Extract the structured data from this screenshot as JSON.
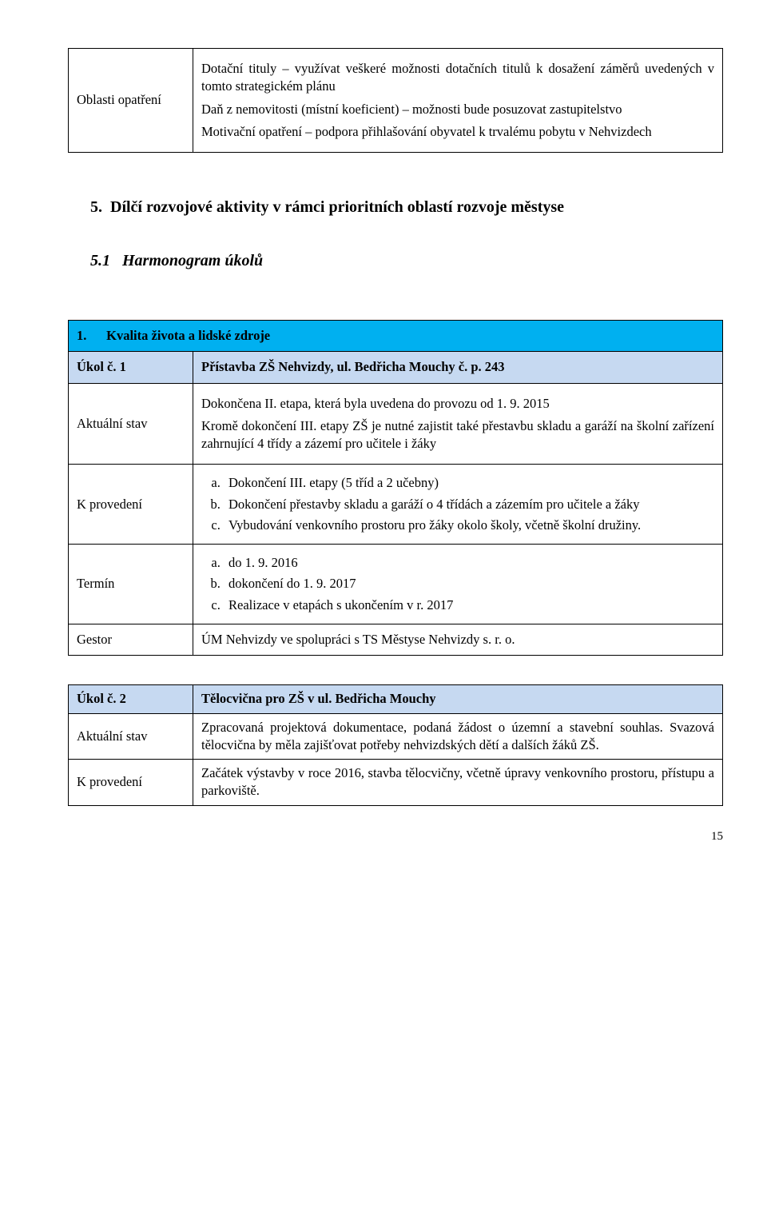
{
  "table1": {
    "left": "Oblasti opatření",
    "p1": "Dotační tituly – využívat veškeré možnosti dotačních titulů k dosažení záměrů uvedených v tomto strategickém plánu",
    "p2": "Daň z nemovitosti (místní koeficient) – možnosti bude posuzovat zastupitelstvo",
    "p3": "Motivační opatření – podpora přihlašování obyvatel k trvalému pobytu v Nehvizdech"
  },
  "h5_num": "5.",
  "h5_text": "Dílčí rozvojové aktivity v rámci prioritních oblastí rozvoje městyse",
  "h51_num": "5.1",
  "h51_text": "Harmonogram úkolů",
  "task1": {
    "header_num": "1.",
    "header_text": "Kvalita života a lidské zdroje",
    "id_label": "Úkol č. 1",
    "title": "Přístavba ZŠ Nehvizdy, ul. Bedřicha Mouchy č. p. 243",
    "aktualni_label": "Aktuální stav",
    "aktualni_p1": "Dokončena II. etapa, která byla uvedena do provozu od 1. 9. 2015",
    "aktualni_p2": "Kromě dokončení III. etapy ZŠ je nutné zajistit také přestavbu skladu a garáží na školní zařízení zahrnující 4 třídy a zázemí pro učitele i žáky",
    "kprov_label": "K provedení",
    "kprov_a": "Dokončení III. etapy (5 tříd a 2 učebny)",
    "kprov_b": "Dokončení přestavby skladu a garáží o 4 třídách a zázemím pro učitele a žáky",
    "kprov_c": "Vybudování venkovního prostoru pro žáky okolo školy, včetně školní družiny.",
    "termin_label": "Termín",
    "termin_a": "do 1. 9. 2016",
    "termin_b": "dokončení do 1. 9. 2017",
    "termin_c": "Realizace v etapách s ukončením v r. 2017",
    "gestor_label": "Gestor",
    "gestor_text": "ÚM Nehvizdy ve spolupráci s TS Městyse Nehvizdy s. r. o."
  },
  "task2": {
    "id_label": "Úkol č. 2",
    "title": "Tělocvična pro ZŠ v ul. Bedřicha Mouchy",
    "aktualni_label": "Aktuální stav",
    "aktualni_text": "Zpracovaná projektová dokumentace, podaná žádost o územní a stavební souhlas. Svazová tělocvična by měla zajišťovat potřeby nehvizdských dětí a dalších žáků ZŠ.",
    "kprov_label": "K provedení",
    "kprov_text": "Začátek výstavby v roce 2016, stavba tělocvičny, včetně úpravy venkovního prostoru, přístupu a parkoviště."
  },
  "pagenum": "15"
}
